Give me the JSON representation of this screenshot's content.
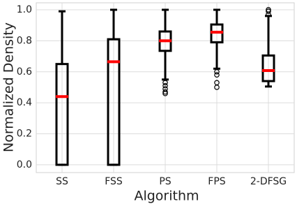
{
  "chart_data": {
    "type": "box",
    "x_label": "Algorithm",
    "y_label": "Normalized Density",
    "categories": [
      "SS",
      "FSS",
      "PS",
      "FPS",
      "2-DFSG"
    ],
    "boxes": [
      {
        "whislo": 0,
        "q1": 0,
        "med": 0.44,
        "q3": 0.65,
        "whishi": 0.99,
        "fliers": []
      },
      {
        "whislo": 0,
        "q1": 0,
        "med": 0.665,
        "q3": 0.81,
        "whishi": 1.0,
        "fliers": []
      },
      {
        "whislo": 0.55,
        "q1": 0.735,
        "med": 0.8,
        "q3": 0.86,
        "whishi": 1.0,
        "fliers": [
          0.53,
          0.51,
          0.49,
          0.47,
          0.46
        ]
      },
      {
        "whislo": 0.62,
        "q1": 0.79,
        "med": 0.855,
        "q3": 0.905,
        "whishi": 1.0,
        "fliers": [
          0.6,
          0.58,
          0.53,
          0.5
        ]
      },
      {
        "whislo": 0.505,
        "q1": 0.54,
        "med": 0.608,
        "q3": 0.705,
        "whishi": 0.96,
        "fliers": [
          0.97,
          0.99,
          1.0
        ]
      }
    ],
    "box_color": "#000000",
    "median_color": "#ff0000",
    "ylim": [
      -0.05,
      1.045
    ],
    "yticks": [
      {
        "value": 0,
        "label": "0.0"
      },
      0.2,
      0.4,
      0.6,
      0.8,
      {
        "value": 1,
        "label": "1.0"
      }
    ],
    "grid": true
  }
}
